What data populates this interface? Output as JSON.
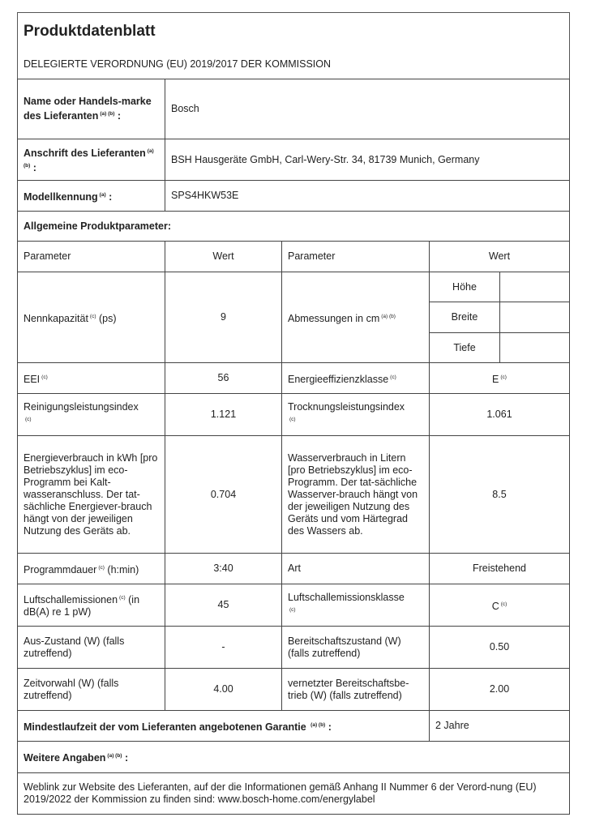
{
  "title": "Produktdatenblatt",
  "regulation": "DELEGIERTE VERORDNUNG (EU) 2019/2017 DER KOMMISSION",
  "supplier": {
    "name_label": "Name oder Handels-marke des Lieferanten",
    "name_sup": "(a) (b)",
    "name_value": "Bosch",
    "address_label": "Anschrift des Lieferanten",
    "address_sup": "(a) (b)",
    "address_value": "BSH Hausgeräte GmbH, Carl-Wery-Str. 34, 81739 Munich, Germany",
    "model_label": "Modellkennung",
    "model_sup": "(a)",
    "model_value": "SPS4HKW53E"
  },
  "general_heading": "Allgemeine Produktparameter:",
  "headers": {
    "param": "Parameter",
    "value": "Wert"
  },
  "rows": {
    "capacity": {
      "label": "Nennkapazität",
      "sup": "(c)",
      "unit": "(ps)",
      "value": "9"
    },
    "dimensions": {
      "label": "Abmessungen in cm",
      "sup": "(a) (b)",
      "height": "Höhe",
      "width": "Breite",
      "depth": "Tiefe"
    },
    "eei": {
      "label": "EEI",
      "sup": "(c)",
      "value": "56"
    },
    "energy_class": {
      "label": "Energieeffizienzklasse",
      "sup": "(c)",
      "value": "E",
      "value_sup": "(c)"
    },
    "cleaning": {
      "label": "Reinigungsleistungsindex",
      "sup": "(c)",
      "value": "1.121"
    },
    "drying": {
      "label": "Trocknungsleistungsindex",
      "sup": "(c)",
      "value": "1.061"
    },
    "energy": {
      "label": "Energieverbrauch in kWh [pro Betriebszyklus] im eco-Programm bei Kalt-wasseranschluss. Der tat-sächliche Energiever-brauch hängt von der jeweiligen Nutzung des Geräts ab.",
      "value": "0.704"
    },
    "water": {
      "label": "Wasserverbrauch in Litern [pro Betriebszyklus] im eco-Programm. Der tat-sächliche Wasserver-brauch hängt von der jeweiligen Nutzung des Geräts und vom Härtegrad des Wassers ab.",
      "value": "8.5"
    },
    "duration": {
      "label": "Programmdauer",
      "sup": "(c)",
      "unit": "(h:min)",
      "value": "3:40"
    },
    "type": {
      "label": "Art",
      "value": "Freistehend"
    },
    "noise": {
      "label": "Luftschallemissionen",
      "sup": "(c)",
      "unit": "(in dB(A) re 1 pW)",
      "value": "45"
    },
    "noise_class": {
      "label": "Luftschallemissionsklasse",
      "sup": "(c)",
      "value": "C",
      "value_sup": "(c)"
    },
    "off": {
      "label": "Aus-Zustand (W) (falls zutreffend)",
      "value": "-"
    },
    "standby": {
      "label": "Bereitschaftszustand (W) (falls zutreffend)",
      "value": "0.50"
    },
    "delay": {
      "label": "Zeitvorwahl (W) (falls zutreffend)",
      "value": "4.00"
    },
    "networked": {
      "label": "vernetzter Bereitschaftsbe-trieb (W) (falls zutreffend)",
      "value": "2.00"
    }
  },
  "warranty": {
    "label": "Mindestlaufzeit der vom Lieferanten angebotenen Garantie",
    "sup": "(a) (b)",
    "value": "2 Jahre"
  },
  "additional": {
    "label": "Weitere Angaben",
    "sup": "(a) (b)"
  },
  "weblink": "Weblink zur Website des Lieferanten, auf der die Informationen gemäß Anhang II Nummer 6 der Verord-nung (EU) 2019/2022 der Kommission zu finden sind: www.bosch-home.com/energylabel"
}
